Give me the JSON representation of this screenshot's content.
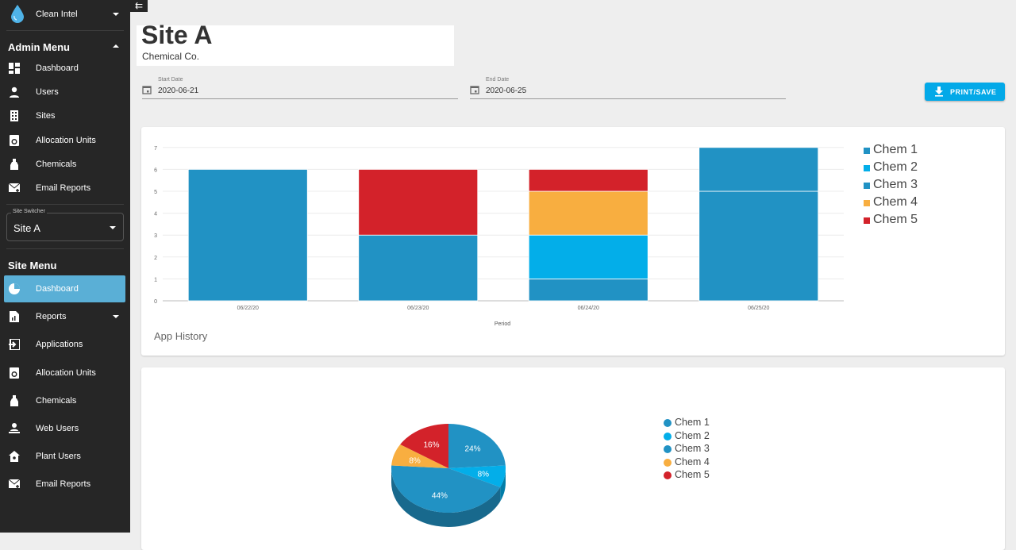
{
  "sidebar": {
    "brand": "Clean Intel",
    "admin_title": "Admin Menu",
    "admin_items": [
      {
        "label": "Dashboard",
        "icon": "dashboard-icon"
      },
      {
        "label": "Users",
        "icon": "person-icon"
      },
      {
        "label": "Sites",
        "icon": "building-icon"
      },
      {
        "label": "Allocation Units",
        "icon": "allocation-unit-icon"
      },
      {
        "label": "Chemicals",
        "icon": "bottle-icon"
      },
      {
        "label": "Email Reports",
        "icon": "email-report-icon"
      }
    ],
    "switcher_label": "Site Switcher",
    "switcher_value": "Site A",
    "site_title": "Site Menu",
    "site_items": [
      {
        "label": "Dashboard",
        "icon": "pie-chart-icon",
        "active": true
      },
      {
        "label": "Reports",
        "icon": "report-icon"
      },
      {
        "label": "Applications",
        "icon": "login-icon"
      },
      {
        "label": "Allocation Units",
        "icon": "allocation-unit-icon"
      },
      {
        "label": "Chemicals",
        "icon": "bottle-icon"
      },
      {
        "label": "Web Users",
        "icon": "web-user-icon"
      },
      {
        "label": "Plant Users",
        "icon": "plant-user-icon"
      },
      {
        "label": "Email Reports",
        "icon": "email-report-icon"
      }
    ],
    "active_color": "#5aafd6"
  },
  "header": {
    "title": "Site A",
    "subtitle": "Chemical Co."
  },
  "filters": {
    "start_label": "Start Date",
    "start_value": "2020-06-21",
    "end_label": "End Date",
    "end_value": "2020-06-25"
  },
  "print_label": "PRINT/SAVE",
  "chart_data": [
    {
      "type": "bar",
      "stacked": true,
      "title": "App History",
      "xlabel": "Period",
      "ylabel": "",
      "categories": [
        "06/22/20",
        "06/23/20",
        "06/24/20",
        "06/25/20"
      ],
      "ylim": [
        0,
        7
      ],
      "yticks": [
        "0",
        "1",
        "2",
        "3",
        "4",
        "5",
        "6",
        "7"
      ],
      "grid": true,
      "legend": "right",
      "series": [
        {
          "name": "Chem 1",
          "color": "#2192c4",
          "values": [
            0,
            0,
            1,
            5
          ]
        },
        {
          "name": "Chem 2",
          "color": "#03aee9",
          "values": [
            0,
            0,
            2,
            0
          ]
        },
        {
          "name": "Chem 3",
          "color": "#2192c4",
          "values": [
            6,
            3,
            0,
            2
          ]
        },
        {
          "name": "Chem 4",
          "color": "#f8ae40",
          "values": [
            0,
            0,
            2,
            0
          ]
        },
        {
          "name": "Chem 5",
          "color": "#d3222a",
          "values": [
            0,
            3,
            1,
            0
          ]
        }
      ]
    },
    {
      "type": "pie",
      "3d": true,
      "legend": "right",
      "slices": [
        {
          "name": "Chem 1",
          "value": 24,
          "label": "24%",
          "color": "#2192c4"
        },
        {
          "name": "Chem 2",
          "value": 8,
          "label": "8%",
          "color": "#03aee9"
        },
        {
          "name": "Chem 3",
          "value": 44,
          "label": "44%",
          "color": "#2192c4"
        },
        {
          "name": "Chem 4",
          "value": 8,
          "label": "8%",
          "color": "#f8ae40"
        },
        {
          "name": "Chem 5",
          "value": 16,
          "label": "16%",
          "color": "#d3222a"
        }
      ]
    }
  ]
}
